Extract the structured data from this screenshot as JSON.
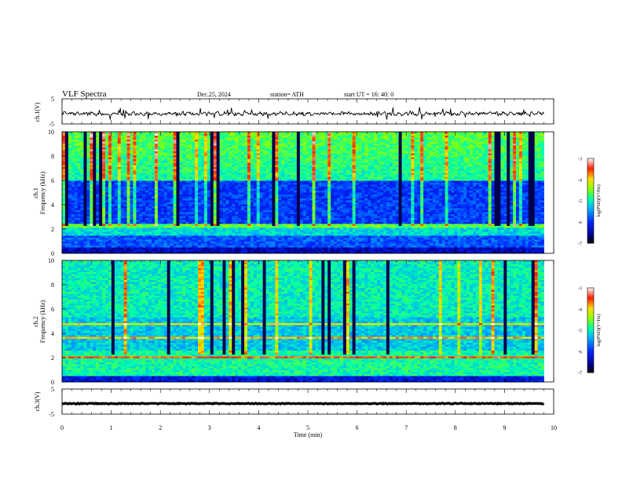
{
  "header": {
    "title": "VLF  Spectra",
    "date": "Dec.25, 2024",
    "station": "station= ATH",
    "start_ut": "start  UT  =   16: 40: 0"
  },
  "chart_data": [
    {
      "id": "ch1-waveform",
      "type": "line",
      "ylabel": "ch.1(V)",
      "ylim": [
        -5,
        5
      ],
      "yticks": [
        "5",
        "-5"
      ],
      "xlim": [
        0,
        10
      ],
      "time_span": 9.8,
      "baseline": -0.9,
      "color": "#000000"
    },
    {
      "id": "ch1-spectrogram",
      "type": "heatmap",
      "ylabel": "ch.1\nFrequency  (kHz)",
      "ylabel_lines": [
        "ch.1",
        "Frequency  (kHz)"
      ],
      "ylim": [
        0,
        10
      ],
      "yticks": [
        "0",
        "2",
        "4",
        "6",
        "8",
        "10"
      ],
      "xlim": [
        0,
        10
      ],
      "time_span": 9.8,
      "colorbar": {
        "label": "log(PSD)(V²/Hz)",
        "range": [
          -7,
          -3
        ],
        "ticks": [
          "-3",
          "-4",
          "-5",
          "-6",
          "-7"
        ],
        "colors": [
          "#000000",
          "#0000ff",
          "#00a0ff",
          "#00ff80",
          "#c0ff00",
          "#ffd000",
          "#ff0000",
          "#ffffff"
        ]
      }
    },
    {
      "id": "ch2-spectrogram",
      "type": "heatmap",
      "ylabel": "ch.2\nFrequency  (kHz)",
      "ylabel_lines": [
        "ch.2",
        "Frequency  (kHz)"
      ],
      "ylim": [
        0,
        10
      ],
      "yticks": [
        "0",
        "2",
        "4",
        "6",
        "8",
        "10"
      ],
      "xlim": [
        0,
        10
      ],
      "time_span": 9.8,
      "colorbar": {
        "label": "log(PSD)(V²/Hz)",
        "range": [
          -7,
          -3
        ],
        "ticks": [
          "-3",
          "-4",
          "-5",
          "-6",
          "-7"
        ],
        "colors": [
          "#000000",
          "#0000ff",
          "#00a0ff",
          "#00ff80",
          "#c0ff00",
          "#ffd000",
          "#ff0000",
          "#ffffff"
        ]
      }
    },
    {
      "id": "ch3-waveform",
      "type": "line",
      "ylabel": "ch.3(V)",
      "ylim": [
        -5,
        5
      ],
      "yticks": [
        "5",
        "-5"
      ],
      "xlim": [
        0,
        10
      ],
      "time_span": 9.8,
      "baseline": -0.8,
      "color": "#000000"
    }
  ],
  "x_axis": {
    "label": "Time  (min)",
    "ticks": [
      "0",
      "1",
      "2",
      "3",
      "4",
      "5",
      "6",
      "7",
      "8",
      "9",
      "10"
    ]
  }
}
